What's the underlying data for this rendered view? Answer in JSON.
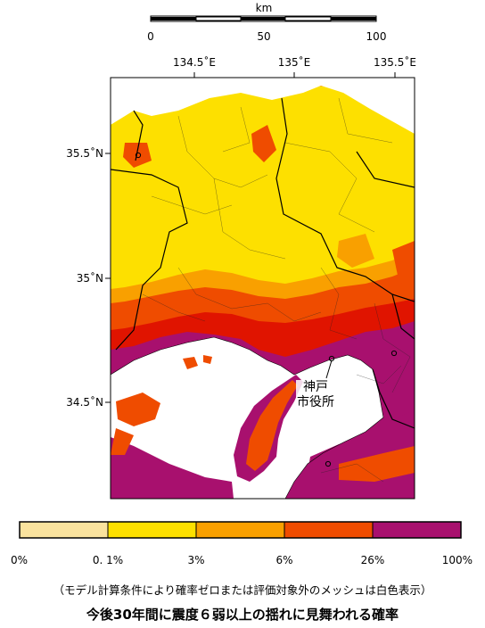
{
  "scale_bar": {
    "unit": "km",
    "labels": [
      "0",
      "50",
      "100"
    ]
  },
  "map": {
    "lon_ticks": [
      "134.5˚E",
      "135˚E",
      "135.5˚E"
    ],
    "lat_ticks": [
      "35.5˚N",
      "35˚N",
      "34.5˚N"
    ],
    "city_label": [
      "神戸",
      "市役所"
    ]
  },
  "legend": {
    "labels": [
      "0%",
      "0. 1%",
      "3%",
      "6%",
      "26%",
      "100%"
    ],
    "colors": [
      "#fae39e",
      "#fde000",
      "#f9a000",
      "#ef4c00",
      "#e01400",
      "#a8106e"
    ]
  },
  "note": "（モデル計算条件により確率ゼロまたは評価対象外のメッシュは白色表示）",
  "title": "今後30年間に震度６弱以上の揺れに見舞われる確率"
}
